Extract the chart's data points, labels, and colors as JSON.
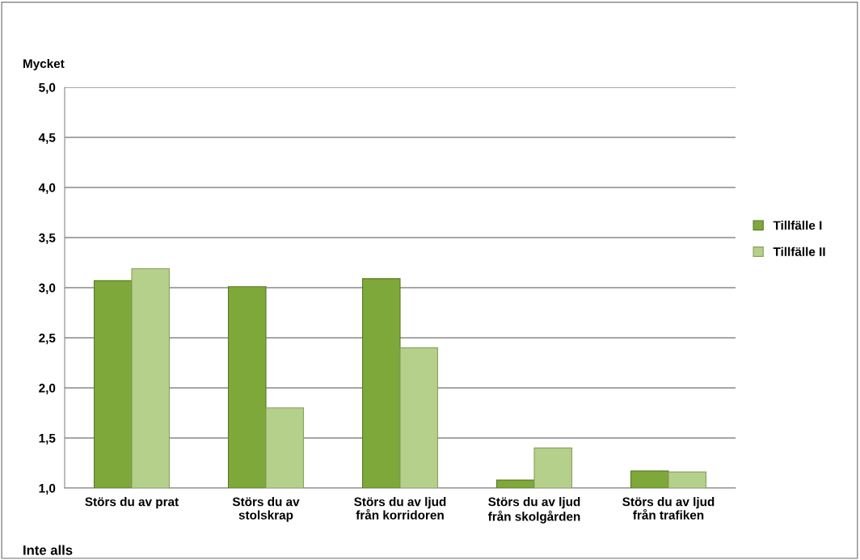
{
  "chart_data": {
    "type": "bar",
    "categories": [
      "Störs du av prat",
      "Störs du av\nstolskrap",
      "Störs du av ljud\nfrån korridoren",
      "Störs du av ljud\nfrån skolgården",
      "Störs du av ljud\nfrån trafiken"
    ],
    "series": [
      {
        "name": "Tillfälle I",
        "color": "#7fa83a",
        "values": [
          3.07,
          3.01,
          3.09,
          1.08,
          1.17
        ]
      },
      {
        "name": "Tillfälle II",
        "color": "#b5d08a",
        "values": [
          3.19,
          1.8,
          2.4,
          1.4,
          1.16
        ]
      }
    ],
    "ylim": [
      1.0,
      5.0
    ],
    "yticks": [
      {
        "value": 1.0,
        "label": "1,0"
      },
      {
        "value": 1.5,
        "label": "1,5"
      },
      {
        "value": 2.0,
        "label": "2,0"
      },
      {
        "value": 2.5,
        "label": "2,5"
      },
      {
        "value": 3.0,
        "label": "3,0"
      },
      {
        "value": 3.5,
        "label": "3,5"
      },
      {
        "value": 4.0,
        "label": "4,0"
      },
      {
        "value": 4.5,
        "label": "4,5"
      },
      {
        "value": 5.0,
        "label": "5,0"
      }
    ],
    "grid": "y",
    "legend": "right",
    "annotations": [
      "Mycket",
      "Inte alls"
    ]
  }
}
